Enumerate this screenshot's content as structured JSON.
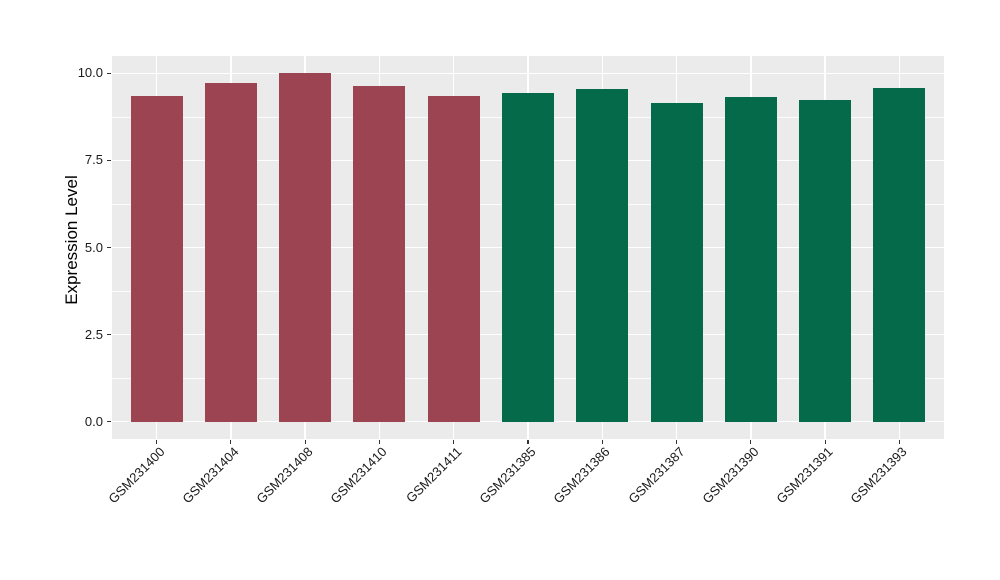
{
  "figure": {
    "background": "#FFFFFF",
    "panel_background": "#EBEBEB",
    "gridline_color": "#FFFFFF",
    "tick_mark_color": "#333333",
    "axis_text_color": "#1A1A1A",
    "group_colors": {
      "left_group": "#9C4451",
      "right_group": "#046A4A"
    }
  },
  "chart_data": {
    "type": "bar",
    "title": "",
    "xlabel": "",
    "ylabel": "Expression Level",
    "categories": [
      "GSM231400",
      "GSM231404",
      "GSM231408",
      "GSM231410",
      "GSM231411",
      "GSM231385",
      "GSM231386",
      "GSM231387",
      "GSM231390",
      "GSM231391",
      "GSM231393"
    ],
    "values": [
      9.36,
      9.72,
      10.0,
      9.65,
      9.36,
      9.45,
      9.56,
      9.15,
      9.32,
      9.23,
      9.58
    ],
    "bar_colors": [
      "#9C4451",
      "#9C4451",
      "#9C4451",
      "#9C4451",
      "#9C4451",
      "#046A4A",
      "#046A4A",
      "#046A4A",
      "#046A4A",
      "#046A4A",
      "#046A4A"
    ],
    "ylim": [
      -0.5,
      10.5
    ],
    "yticks": [
      0.0,
      2.5,
      5.0,
      7.5,
      10.0
    ],
    "ytick_labels": [
      "0.0",
      "2.5",
      "5.0",
      "7.5",
      "10.0"
    ],
    "minor_yticks": [
      1.25,
      3.75,
      6.25,
      8.75
    ],
    "grid": "major+minor horizontal, major vertical at category centers",
    "legend": "none",
    "bar_width_fraction": 0.7
  }
}
